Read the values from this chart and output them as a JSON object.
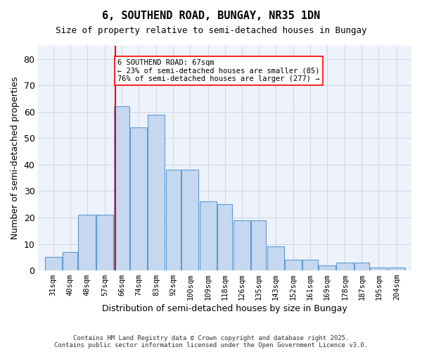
{
  "title": "6, SOUTHEND ROAD, BUNGAY, NR35 1DN",
  "subtitle": "Size of property relative to semi-detached houses in Bungay",
  "xlabel": "Distribution of semi-detached houses by size in Bungay",
  "ylabel": "Number of semi-detached properties",
  "bar_values": [
    5,
    7,
    21,
    21,
    62,
    54,
    59,
    38,
    38,
    26,
    25,
    19,
    19,
    9,
    4,
    4,
    2,
    3,
    3,
    1,
    1
  ],
  "bin_labels": [
    "31sqm",
    "40sqm",
    "48sqm",
    "57sqm",
    "66sqm",
    "74sqm",
    "83sqm",
    "92sqm",
    "100sqm",
    "109sqm",
    "118sqm",
    "126sqm",
    "135sqm",
    "143sqm",
    "152sqm",
    "161sqm",
    "169sqm",
    "178sqm",
    "187sqm",
    "195sqm",
    "204sqm"
  ],
  "bar_color": "#c5d8f0",
  "bar_edge_color": "#5b9bd5",
  "grid_color": "#d0d8e8",
  "background_color": "#eef2fb",
  "vline_x": 67,
  "vline_color": "red",
  "annotation_title": "6 SOUTHEND ROAD: 67sqm",
  "annotation_line1": "← 23% of semi-detached houses are smaller (85)",
  "annotation_line2": "76% of semi-detached houses are larger (277) →",
  "annotation_box_color": "white",
  "annotation_box_edge": "red",
  "footnote": "Contains HM Land Registry data © Crown copyright and database right 2025.\nContains public sector information licensed under the Open Government Licence v3.0.",
  "ylim": [
    0,
    85
  ],
  "yticks": [
    0,
    10,
    20,
    30,
    40,
    50,
    60,
    70,
    80
  ],
  "bin_edges": [
    31,
    40,
    48,
    57,
    66,
    74,
    83,
    92,
    100,
    109,
    118,
    126,
    135,
    143,
    152,
    161,
    169,
    178,
    187,
    195,
    204,
    213
  ]
}
